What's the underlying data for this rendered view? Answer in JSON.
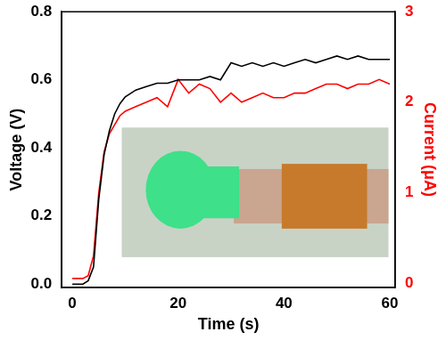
{
  "chart_data": {
    "type": "line",
    "x_label": "Time (s)",
    "y_label": "Voltage (V)",
    "y2_label": "Current (μA)",
    "xlim": [
      -2,
      61
    ],
    "xticks": [
      0,
      20,
      40,
      60
    ],
    "ylim": [
      -0.01,
      0.8
    ],
    "yticks": [
      {
        "value": 0,
        "label": "0.0"
      },
      0.2,
      0.4,
      0.6,
      0.8
    ],
    "y2lim": [
      -0.05,
      3
    ],
    "y2ticks": [
      0,
      1,
      2,
      3
    ],
    "grid": false,
    "x": [
      0,
      2,
      3,
      4,
      5,
      6,
      7,
      8,
      9,
      10,
      12,
      14,
      16,
      18,
      20,
      22,
      24,
      26,
      28,
      30,
      32,
      34,
      36,
      38,
      40,
      42,
      44,
      46,
      48,
      50,
      52,
      54,
      56,
      58,
      60
    ],
    "series": [
      {
        "color": "#000000",
        "line_style": "solid",
        "values": [
          0.0,
          0.0,
          0.01,
          0.05,
          0.25,
          0.38,
          0.45,
          0.5,
          0.53,
          0.55,
          0.57,
          0.58,
          0.59,
          0.59,
          0.6,
          0.6,
          0.6,
          0.61,
          0.6,
          0.65,
          0.64,
          0.65,
          0.64,
          0.65,
          0.64,
          0.65,
          0.66,
          0.65,
          0.66,
          0.67,
          0.66,
          0.67,
          0.66,
          0.66,
          0.66
        ]
      },
      {
        "color": "#ff0000",
        "line_style": "solid",
        "axis": "y2",
        "values": [
          0.05,
          0.05,
          0.08,
          0.3,
          1.0,
          1.45,
          1.65,
          1.75,
          1.85,
          1.9,
          1.95,
          2.0,
          2.05,
          1.95,
          2.25,
          2.1,
          2.2,
          2.15,
          2.0,
          2.1,
          2.0,
          2.05,
          2.1,
          2.05,
          2.05,
          2.1,
          2.1,
          2.15,
          2.2,
          2.2,
          2.15,
          2.2,
          2.2,
          2.25,
          2.2
        ]
      }
    ]
  }
}
